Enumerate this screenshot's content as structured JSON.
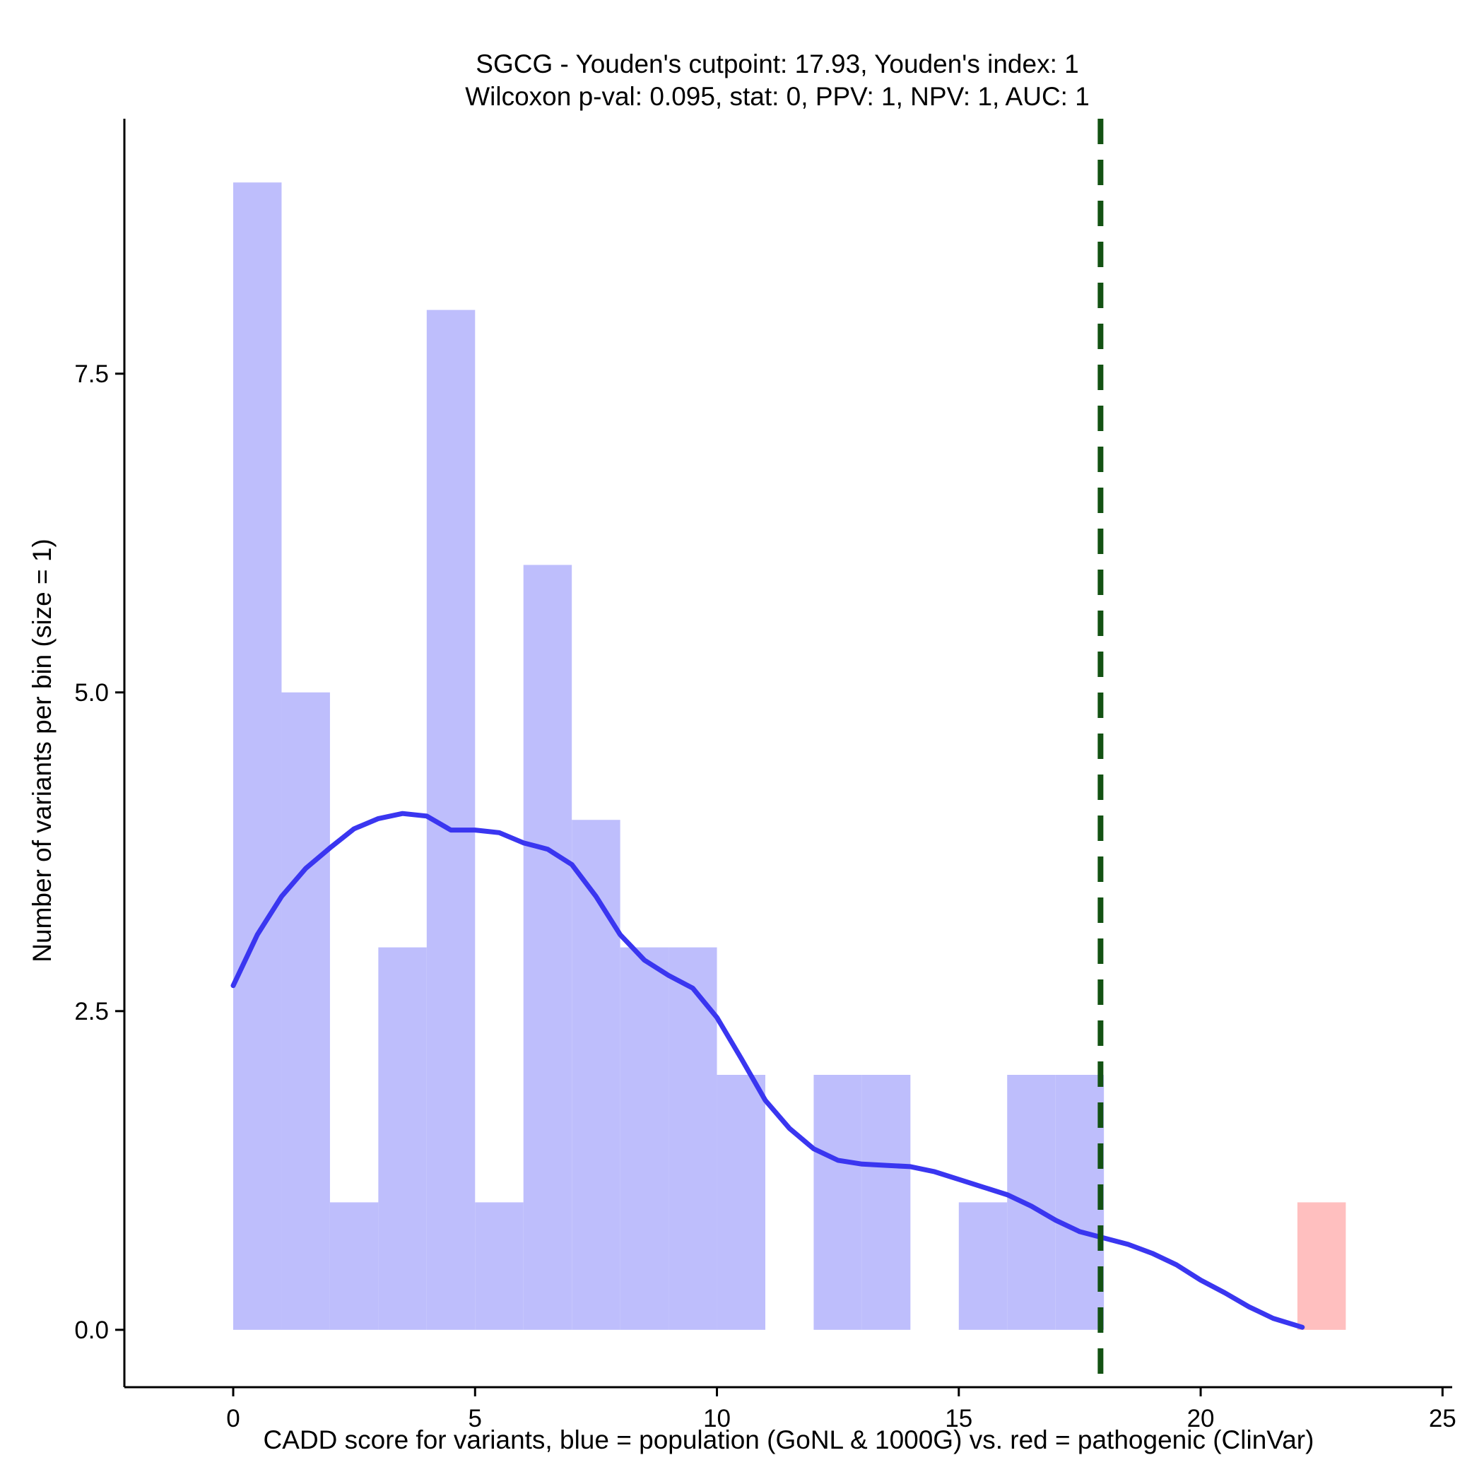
{
  "chart_data": {
    "type": "bar",
    "title_line1": "SGCG - Youden's cutpoint: 17.93, Youden's index: 1",
    "title_line2": "Wilcoxon p-val: 0.095, stat: 0, PPV: 1, NPV: 1, AUC: 1",
    "xlabel": "CADD score for variants, blue = population (GoNL & 1000G) vs. red = pathogenic (ClinVar)",
    "ylabel": "Number of variants per bin (size = 1)",
    "xlim": [
      -2.25,
      25.2
    ],
    "ylim": [
      -0.45,
      9.5
    ],
    "x_ticks": [
      0,
      5,
      10,
      15,
      20,
      25
    ],
    "x_tick_labels": [
      "0",
      "5",
      "10",
      "15",
      "20",
      "25"
    ],
    "y_ticks": [
      0,
      2.5,
      5,
      7.5
    ],
    "y_tick_labels": [
      "0.0",
      "2.5",
      "5.0",
      "7.5"
    ],
    "bin_width": 1,
    "series": [
      {
        "name": "population (GoNL & 1000G)",
        "color": "#bebefc",
        "bins": [
          {
            "start": 0,
            "count": 9
          },
          {
            "start": 1,
            "count": 5
          },
          {
            "start": 2,
            "count": 1
          },
          {
            "start": 3,
            "count": 3
          },
          {
            "start": 4,
            "count": 8
          },
          {
            "start": 5,
            "count": 1
          },
          {
            "start": 6,
            "count": 6
          },
          {
            "start": 7,
            "count": 4
          },
          {
            "start": 8,
            "count": 3
          },
          {
            "start": 9,
            "count": 3
          },
          {
            "start": 10,
            "count": 2
          },
          {
            "start": 12,
            "count": 2
          },
          {
            "start": 13,
            "count": 2
          },
          {
            "start": 15,
            "count": 1
          },
          {
            "start": 16,
            "count": 2
          },
          {
            "start": 17,
            "count": 2
          }
        ]
      },
      {
        "name": "pathogenic (ClinVar)",
        "color": "#ffbfbf",
        "bins": [
          {
            "start": 22,
            "count": 1
          }
        ]
      }
    ],
    "density_curve": {
      "color": "#3a36f0",
      "x": [
        0,
        0.5,
        1,
        1.5,
        2,
        2.5,
        3,
        3.5,
        4,
        4.5,
        5,
        5.5,
        6,
        6.5,
        7,
        7.5,
        8,
        8.5,
        9,
        9.5,
        10,
        10.5,
        11,
        11.5,
        12,
        12.5,
        13,
        13.5,
        14,
        14.5,
        15,
        15.5,
        16,
        16.5,
        17,
        17.5,
        18,
        18.5,
        19,
        19.5,
        20,
        20.5,
        21,
        21.5,
        22.1
      ],
      "y": [
        2.7,
        3.1,
        3.4,
        3.62,
        3.78,
        3.93,
        4.01,
        4.05,
        4.03,
        3.92,
        3.92,
        3.9,
        3.82,
        3.77,
        3.65,
        3.4,
        3.1,
        2.9,
        2.78,
        2.68,
        2.45,
        2.13,
        1.8,
        1.58,
        1.42,
        1.33,
        1.3,
        1.29,
        1.28,
        1.24,
        1.18,
        1.12,
        1.06,
        0.97,
        0.86,
        0.77,
        0.72,
        0.67,
        0.6,
        0.51,
        0.39,
        0.29,
        0.18,
        0.09,
        0.02
      ]
    },
    "cutpoint": {
      "x": 17.93,
      "color": "#135213",
      "style": "dashed"
    },
    "grid": false,
    "legend": "none"
  }
}
